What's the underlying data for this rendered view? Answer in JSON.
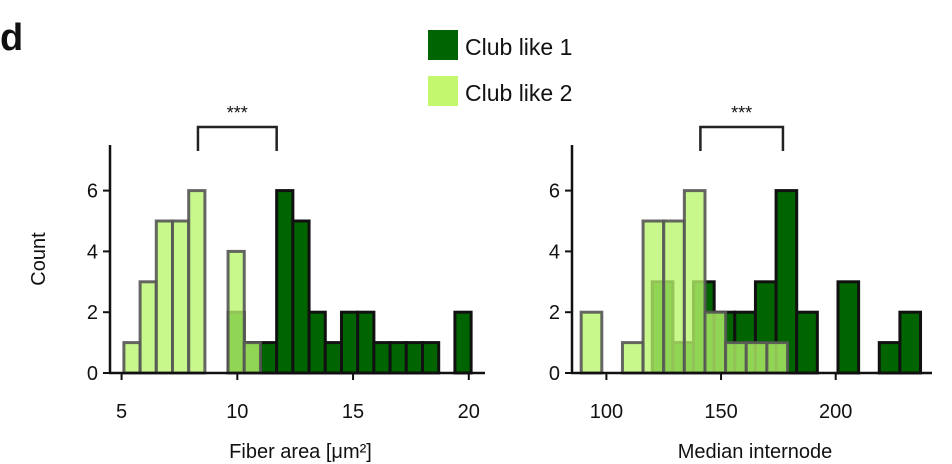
{
  "panel_label": "d",
  "colors": {
    "club1": "#006400",
    "club2": "#b9f56a",
    "club1_edge": "#111111",
    "club2_edge": "#555555"
  },
  "legend": [
    {
      "label": "Club like 1",
      "color": "#006400"
    },
    {
      "label": "Club like 2",
      "color": "#c2f76e"
    }
  ],
  "chart_data": [
    {
      "type": "bar",
      "subtype": "histogram",
      "xlabel": "Fiber area [μm²]",
      "ylabel": "Count",
      "xlim": [
        4.5,
        20.7
      ],
      "ylim": [
        0,
        7.5
      ],
      "xticks": [
        5,
        10,
        15,
        20
      ],
      "yticks": [
        0,
        2,
        4,
        6
      ],
      "significance": "***",
      "bracket": [
        8.3,
        11.7
      ],
      "series": [
        {
          "name": "Club like 1",
          "bin_width": 0.7,
          "bins": [
            {
              "x": 9.6,
              "y": 2
            },
            {
              "x": 10.3,
              "y": 1
            },
            {
              "x": 11.0,
              "y": 1
            },
            {
              "x": 11.7,
              "y": 6
            },
            {
              "x": 12.4,
              "y": 5
            },
            {
              "x": 13.1,
              "y": 2
            },
            {
              "x": 13.8,
              "y": 1
            },
            {
              "x": 14.5,
              "y": 2
            },
            {
              "x": 15.2,
              "y": 2
            },
            {
              "x": 15.9,
              "y": 1
            },
            {
              "x": 16.6,
              "y": 1
            },
            {
              "x": 17.3,
              "y": 1
            },
            {
              "x": 18.0,
              "y": 1
            },
            {
              "x": 19.4,
              "y": 2
            }
          ]
        },
        {
          "name": "Club like 2",
          "bin_width": 0.7,
          "bins": [
            {
              "x": 5.1,
              "y": 1
            },
            {
              "x": 5.8,
              "y": 3
            },
            {
              "x": 6.5,
              "y": 5
            },
            {
              "x": 7.2,
              "y": 5
            },
            {
              "x": 7.9,
              "y": 6
            },
            {
              "x": 9.6,
              "y": 4
            },
            {
              "x": 10.3,
              "y": 1
            }
          ]
        }
      ]
    },
    {
      "type": "bar",
      "subtype": "histogram",
      "xlabel": "Median internode",
      "ylabel": "",
      "xlim": [
        85,
        242
      ],
      "ylim": [
        0,
        7.5
      ],
      "xticks": [
        100,
        150,
        200
      ],
      "yticks": [
        0,
        2,
        4,
        6
      ],
      "significance": "***",
      "bracket": [
        141,
        177
      ],
      "series": [
        {
          "name": "Club like 1",
          "bin_width": 9,
          "bins": [
            {
              "x": 120,
              "y": 3
            },
            {
              "x": 129,
              "y": 1
            },
            {
              "x": 138,
              "y": 3
            },
            {
              "x": 147,
              "y": 2
            },
            {
              "x": 156,
              "y": 2
            },
            {
              "x": 165,
              "y": 3
            },
            {
              "x": 174,
              "y": 6
            },
            {
              "x": 183,
              "y": 2
            },
            {
              "x": 201,
              "y": 3
            },
            {
              "x": 219,
              "y": 1
            },
            {
              "x": 228,
              "y": 2
            }
          ]
        },
        {
          "name": "Club like 2",
          "bin_width": 9,
          "bins": [
            {
              "x": 89,
              "y": 2
            },
            {
              "x": 107,
              "y": 1
            },
            {
              "x": 116,
              "y": 5
            },
            {
              "x": 125,
              "y": 5
            },
            {
              "x": 134,
              "y": 6
            },
            {
              "x": 143,
              "y": 2
            },
            {
              "x": 152,
              "y": 1
            },
            {
              "x": 161,
              "y": 1
            },
            {
              "x": 170,
              "y": 1
            }
          ]
        }
      ]
    }
  ]
}
